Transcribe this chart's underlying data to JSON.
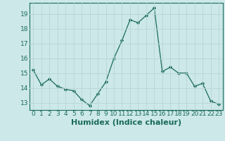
{
  "x": [
    0,
    1,
    2,
    3,
    4,
    5,
    6,
    7,
    8,
    9,
    10,
    11,
    12,
    13,
    14,
    15,
    16,
    17,
    18,
    19,
    20,
    21,
    22,
    23
  ],
  "y": [
    15.2,
    14.2,
    14.6,
    14.1,
    13.9,
    13.8,
    13.2,
    12.8,
    13.6,
    14.4,
    16.0,
    17.2,
    18.6,
    18.4,
    18.9,
    19.4,
    15.1,
    15.4,
    15.0,
    15.0,
    14.1,
    14.3,
    13.1,
    12.9
  ],
  "xlabel": "Humidex (Indice chaleur)",
  "ylim": [
    12.5,
    19.75
  ],
  "xlim": [
    -0.5,
    23.5
  ],
  "line_color": "#1a6b5a",
  "marker": "D",
  "marker_size": 2.2,
  "bg_color": "#cce8e8",
  "grid_color": "#b8d4d4",
  "yticks": [
    13,
    14,
    15,
    16,
    17,
    18,
    19
  ],
  "xticks": [
    0,
    1,
    2,
    3,
    4,
    5,
    6,
    7,
    8,
    9,
    10,
    11,
    12,
    13,
    14,
    15,
    16,
    17,
    18,
    19,
    20,
    21,
    22,
    23
  ],
  "tick_fontsize": 6.5,
  "xlabel_fontsize": 8.0
}
